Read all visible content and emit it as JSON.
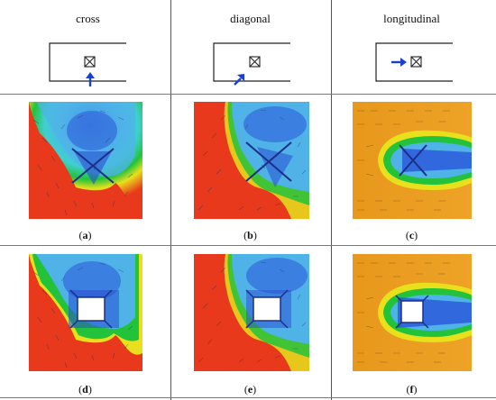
{
  "columns": [
    {
      "header": "cross"
    },
    {
      "header": "diagonal"
    },
    {
      "header": "longitudinal"
    }
  ],
  "rows": [
    {
      "panels": [
        {
          "letter": "a",
          "type": "cross-x"
        },
        {
          "letter": "b",
          "type": "diag-x"
        },
        {
          "letter": "c",
          "type": "long-x"
        }
      ]
    },
    {
      "panels": [
        {
          "letter": "d",
          "type": "cross-box"
        },
        {
          "letter": "e",
          "type": "diag-box"
        },
        {
          "letter": "f",
          "type": "long-box"
        }
      ]
    }
  ],
  "colors": {
    "low": "#2b55d9",
    "mid_low": "#4fb3e8",
    "mid": "#22c33a",
    "mid_high": "#e8e01c",
    "high": "#e8391c",
    "wind_arrow": "#1a3fd0"
  }
}
